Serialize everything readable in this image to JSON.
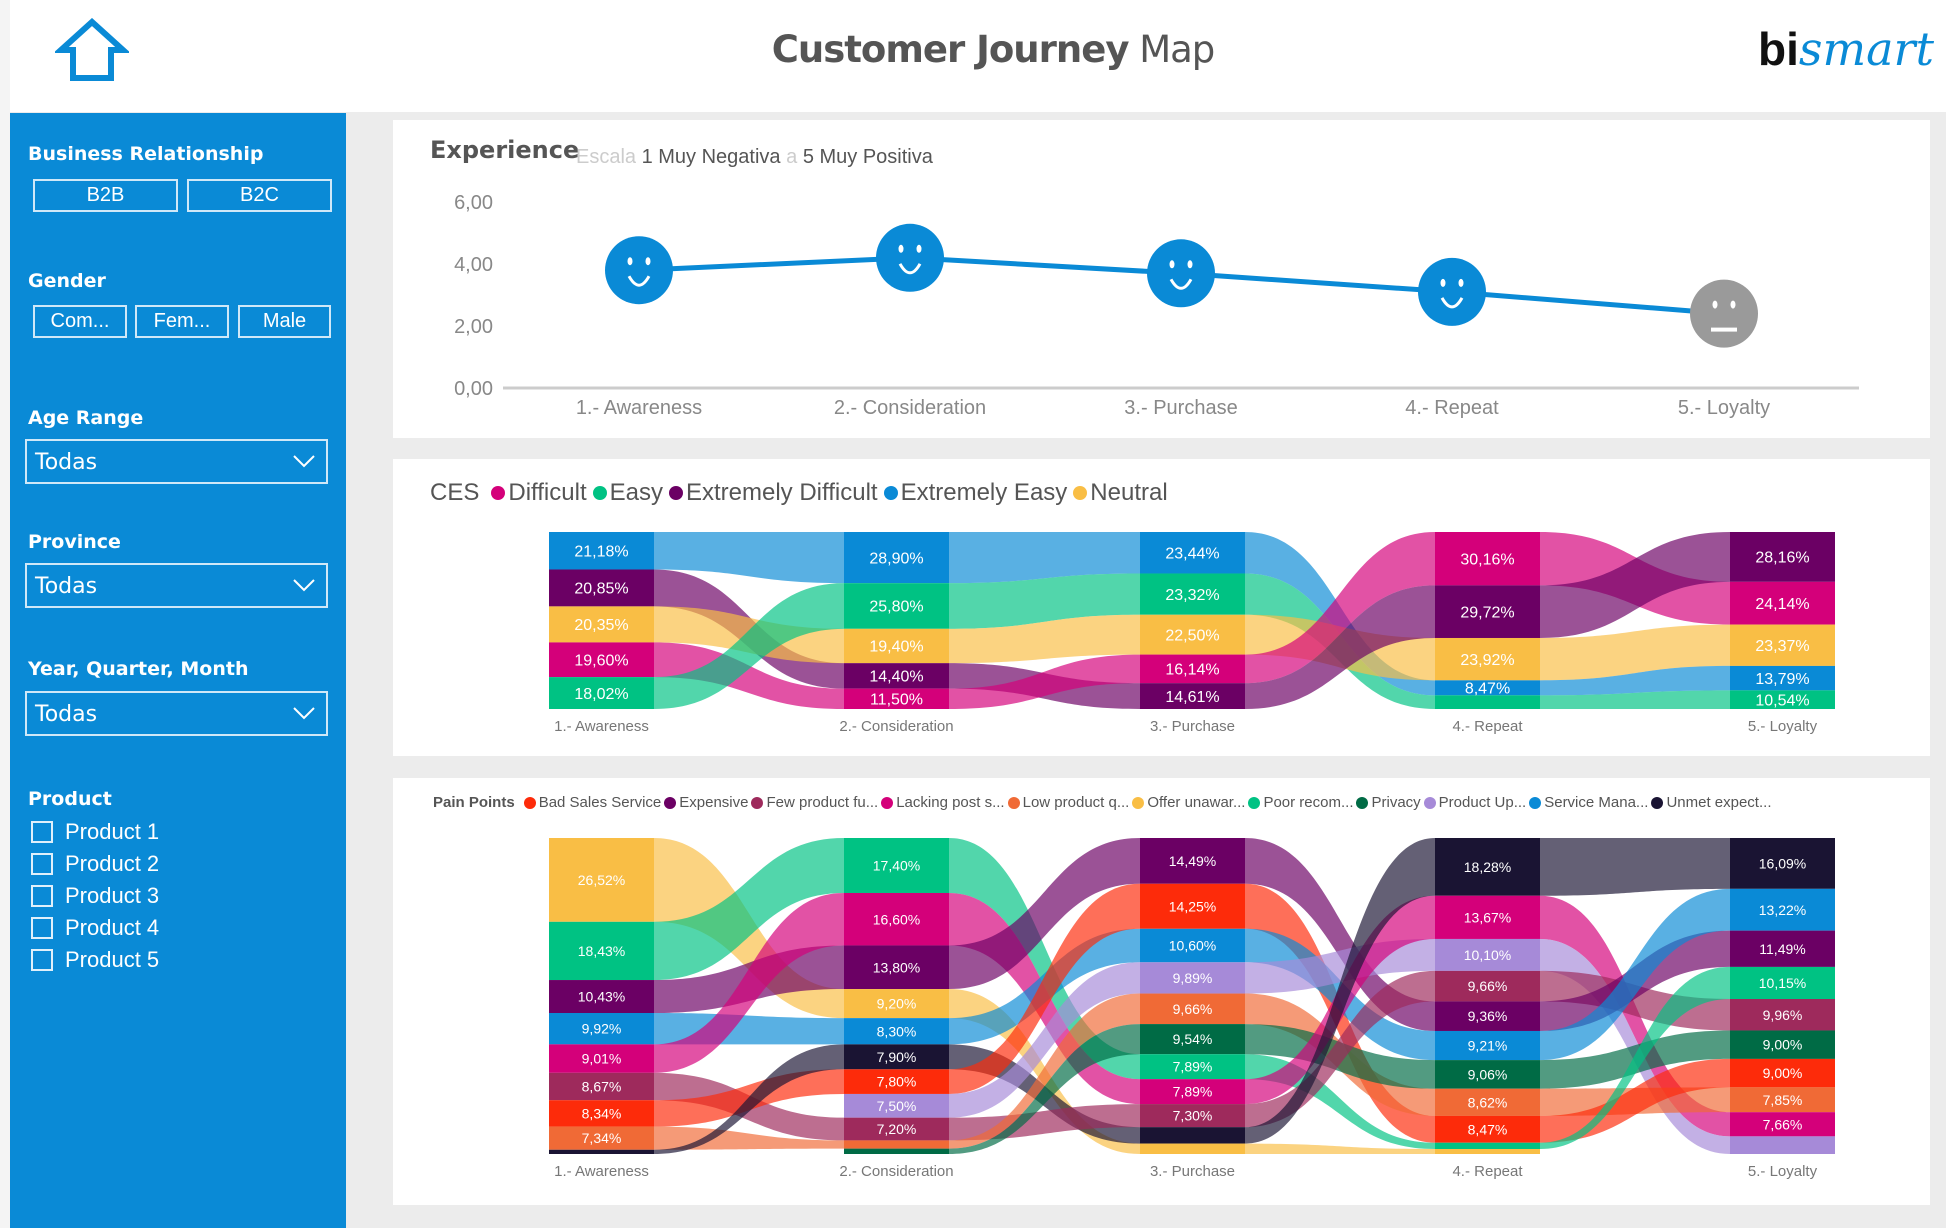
{
  "header": {
    "title_bold": "Customer Journey",
    "title_light": "Map",
    "logo": {
      "bi": "bi",
      "smart": "smart"
    },
    "home_icon": "home-icon"
  },
  "sidebar": {
    "business_relationship": {
      "label": "Business Relationship",
      "options": [
        "B2B",
        "B2C"
      ]
    },
    "gender": {
      "label": "Gender",
      "options": [
        "Com...",
        "Fem...",
        "Male"
      ]
    },
    "age_range": {
      "label": "Age Range",
      "value": "Todas"
    },
    "province": {
      "label": "Province",
      "value": "Todas"
    },
    "period": {
      "label": "Year, Quarter, Month",
      "value": "Todas"
    },
    "product": {
      "label": "Product",
      "items": [
        "Product 1",
        "Product 2",
        "Product 3",
        "Product 4",
        "Product 5"
      ]
    }
  },
  "experience": {
    "title": "Experience",
    "scale_label": "Escala",
    "scale_low": "1 Muy Negativa",
    "scale_sep": "a",
    "scale_high": "5 Muy Positiva",
    "chart_data": {
      "type": "line",
      "categories": [
        "1.- Awareness",
        "2.- Consideration",
        "3.- Purchase",
        "4.- Repeat",
        "5.- Loyalty"
      ],
      "values": [
        3.8,
        4.2,
        3.7,
        3.1,
        2.4
      ],
      "markers": [
        "smile",
        "smile",
        "smile",
        "smile",
        "neutral"
      ],
      "yticks": [
        "0,00",
        "2,00",
        "4,00",
        "6,00"
      ],
      "ylim": [
        0,
        6
      ],
      "grid": false,
      "color": "#0a8ad6",
      "neutral_color": "#9a9a9a"
    }
  },
  "ces": {
    "title": "CES",
    "colors": {
      "Difficult": "#d4007a",
      "Easy": "#00c283",
      "Extremely Difficult": "#6b0064",
      "Extremely Easy": "#0a8ad6",
      "Neutral": "#f9be45"
    },
    "chart_data": {
      "type": "sankey",
      "legend": [
        "Difficult",
        "Easy",
        "Extremely Difficult",
        "Extremely Easy",
        "Neutral"
      ],
      "legend_position": "top-left",
      "columns": [
        {
          "label": "1.- Awareness",
          "segments": [
            {
              "cat": "Extremely Easy",
              "value": 21.18,
              "label": "21,18%"
            },
            {
              "cat": "Extremely Difficult",
              "value": 20.85,
              "label": "20,85%"
            },
            {
              "cat": "Neutral",
              "value": 20.35,
              "label": "20,35%"
            },
            {
              "cat": "Difficult",
              "value": 19.6,
              "label": "19,60%"
            },
            {
              "cat": "Easy",
              "value": 18.02,
              "label": "18,02%"
            }
          ]
        },
        {
          "label": "2.- Consideration",
          "segments": [
            {
              "cat": "Extremely Easy",
              "value": 28.9,
              "label": "28,90%"
            },
            {
              "cat": "Easy",
              "value": 25.8,
              "label": "25,80%"
            },
            {
              "cat": "Neutral",
              "value": 19.4,
              "label": "19,40%"
            },
            {
              "cat": "Extremely Difficult",
              "value": 14.4,
              "label": "14,40%"
            },
            {
              "cat": "Difficult",
              "value": 11.5,
              "label": "11,50%"
            }
          ]
        },
        {
          "label": "3.- Purchase",
          "segments": [
            {
              "cat": "Extremely Easy",
              "value": 23.44,
              "label": "23,44%"
            },
            {
              "cat": "Easy",
              "value": 23.32,
              "label": "23,32%"
            },
            {
              "cat": "Neutral",
              "value": 22.5,
              "label": "22,50%"
            },
            {
              "cat": "Difficult",
              "value": 16.14,
              "label": "16,14%"
            },
            {
              "cat": "Extremely Difficult",
              "value": 14.61,
              "label": "14,61%"
            }
          ]
        },
        {
          "label": "4.- Repeat",
          "segments": [
            {
              "cat": "Difficult",
              "value": 30.16,
              "label": "30,16%"
            },
            {
              "cat": "Extremely Difficult",
              "value": 29.72,
              "label": "29,72%"
            },
            {
              "cat": "Neutral",
              "value": 23.92,
              "label": "23,92%"
            },
            {
              "cat": "Extremely Easy",
              "value": 8.47,
              "label": "8,47%"
            },
            {
              "cat": "Easy",
              "value": 7.73
            }
          ]
        },
        {
          "label": "5.- Loyalty",
          "segments": [
            {
              "cat": "Extremely Difficult",
              "value": 28.16,
              "label": "28,16%"
            },
            {
              "cat": "Difficult",
              "value": 24.14,
              "label": "24,14%"
            },
            {
              "cat": "Neutral",
              "value": 23.37,
              "label": "23,37%"
            },
            {
              "cat": "Extremely Easy",
              "value": 13.79,
              "label": "13,79%"
            },
            {
              "cat": "Easy",
              "value": 10.54,
              "label": "10,54%"
            }
          ]
        }
      ]
    }
  },
  "pain": {
    "title": "Pain Points",
    "colors": {
      "Bad Sales Service": "#fd2b0a",
      "Expensive": "#6b0064",
      "Few product fu...": "#9e2a5c",
      "Lacking post s...": "#d4007a",
      "Low product q...": "#f06a36",
      "Offer unawar...": "#f9be45",
      "Poor recom...": "#00c283",
      "Privacy": "#006b45",
      "Product Up...": "#a68ad8",
      "Service Mana...": "#0a8ad6",
      "Unmet expect...": "#1a1433"
    },
    "chart_data": {
      "type": "sankey",
      "legend": [
        "Bad Sales Service",
        "Expensive",
        "Few product fu...",
        "Lacking post s...",
        "Low product q...",
        "Offer unawar...",
        "Poor recom...",
        "Privacy",
        "Product Up...",
        "Service Mana...",
        "Unmet expect..."
      ],
      "legend_position": "top-left",
      "columns": [
        {
          "label": "1.- Awareness",
          "segments": [
            {
              "cat": "Offer unawar...",
              "value": 26.52,
              "label": "26,52%"
            },
            {
              "cat": "Poor recom...",
              "value": 18.43,
              "label": "18,43%"
            },
            {
              "cat": "Expensive",
              "value": 10.43,
              "label": "10,43%"
            },
            {
              "cat": "Service Mana...",
              "value": 9.92,
              "label": "9,92%"
            },
            {
              "cat": "Lacking post s...",
              "value": 9.01,
              "label": "9,01%"
            },
            {
              "cat": "Few product fu...",
              "value": 8.67,
              "label": "8,67%"
            },
            {
              "cat": "Bad Sales Service",
              "value": 8.34,
              "label": "8,34%"
            },
            {
              "cat": "Low product q...",
              "value": 7.34,
              "label": "7,34%"
            },
            {
              "cat": "Unmet expect...",
              "value": 1.34
            }
          ]
        },
        {
          "label": "2.- Consideration",
          "segments": [
            {
              "cat": "Poor recom...",
              "value": 17.4,
              "label": "17,40%"
            },
            {
              "cat": "Lacking post s...",
              "value": 16.6,
              "label": "16,60%"
            },
            {
              "cat": "Expensive",
              "value": 13.8,
              "label": "13,80%"
            },
            {
              "cat": "Offer unawar...",
              "value": 9.2,
              "label": "9,20%"
            },
            {
              "cat": "Service Mana...",
              "value": 8.3,
              "label": "8,30%"
            },
            {
              "cat": "Unmet expect...",
              "value": 7.9,
              "label": "7,90%"
            },
            {
              "cat": "Bad Sales Service",
              "value": 7.8,
              "label": "7,80%"
            },
            {
              "cat": "Product Up...",
              "value": 7.5,
              "label": "7,50%"
            },
            {
              "cat": "Few product fu...",
              "value": 7.2,
              "label": "7,20%"
            },
            {
              "cat": "Low product q...",
              "value": 2.6
            },
            {
              "cat": "Privacy",
              "value": 1.7
            }
          ]
        },
        {
          "label": "3.- Purchase",
          "segments": [
            {
              "cat": "Expensive",
              "value": 14.49,
              "label": "14,49%"
            },
            {
              "cat": "Bad Sales Service",
              "value": 14.25,
              "label": "14,25%"
            },
            {
              "cat": "Service Mana...",
              "value": 10.6,
              "label": "10,60%"
            },
            {
              "cat": "Product Up...",
              "value": 9.89,
              "label": "9,89%"
            },
            {
              "cat": "Low product q...",
              "value": 9.66,
              "label": "9,66%"
            },
            {
              "cat": "Privacy",
              "value": 9.54,
              "label": "9,54%"
            },
            {
              "cat": "Poor recom...",
              "value": 7.89,
              "label": "7,89%"
            },
            {
              "cat": "Lacking post s...",
              "value": 7.89,
              "label": "7,89%"
            },
            {
              "cat": "Few product fu...",
              "value": 7.3,
              "label": "7,30%"
            },
            {
              "cat": "Unmet expect...",
              "value": 5.2
            },
            {
              "cat": "Offer unawar...",
              "value": 3.3
            }
          ]
        },
        {
          "label": "4.- Repeat",
          "segments": [
            {
              "cat": "Unmet expect...",
              "value": 18.28,
              "label": "18,28%"
            },
            {
              "cat": "Lacking post s...",
              "value": 13.67,
              "label": "13,67%"
            },
            {
              "cat": "Product Up...",
              "value": 10.1,
              "label": "10,10%"
            },
            {
              "cat": "Few product fu...",
              "value": 9.66,
              "label": "9,66%"
            },
            {
              "cat": "Expensive",
              "value": 9.36,
              "label": "9,36%"
            },
            {
              "cat": "Service Mana...",
              "value": 9.21,
              "label": "9,21%"
            },
            {
              "cat": "Privacy",
              "value": 9.06,
              "label": "9,06%"
            },
            {
              "cat": "Low product q...",
              "value": 8.62,
              "label": "8,62%"
            },
            {
              "cat": "Bad Sales Service",
              "value": 8.47,
              "label": "8,47%"
            },
            {
              "cat": "Poor recom...",
              "value": 2.0
            },
            {
              "cat": "Offer unawar...",
              "value": 1.57
            }
          ]
        },
        {
          "label": "5.- Loyalty",
          "segments": [
            {
              "cat": "Unmet expect...",
              "value": 16.09,
              "label": "16,09%"
            },
            {
              "cat": "Service Mana...",
              "value": 13.22,
              "label": "13,22%"
            },
            {
              "cat": "Expensive",
              "value": 11.49,
              "label": "11,49%"
            },
            {
              "cat": "Poor recom...",
              "value": 10.15,
              "label": "10,15%"
            },
            {
              "cat": "Few product fu...",
              "value": 9.96,
              "label": "9,96%"
            },
            {
              "cat": "Privacy",
              "value": 9.0,
              "label": "9,00%"
            },
            {
              "cat": "Bad Sales Service",
              "value": 9.0,
              "label": "9,00%"
            },
            {
              "cat": "Low product q...",
              "value": 7.85,
              "label": "7,85%"
            },
            {
              "cat": "Lacking post s...",
              "value": 7.66,
              "label": "7,66%"
            },
            {
              "cat": "Product Up...",
              "value": 5.58
            }
          ]
        }
      ]
    }
  }
}
